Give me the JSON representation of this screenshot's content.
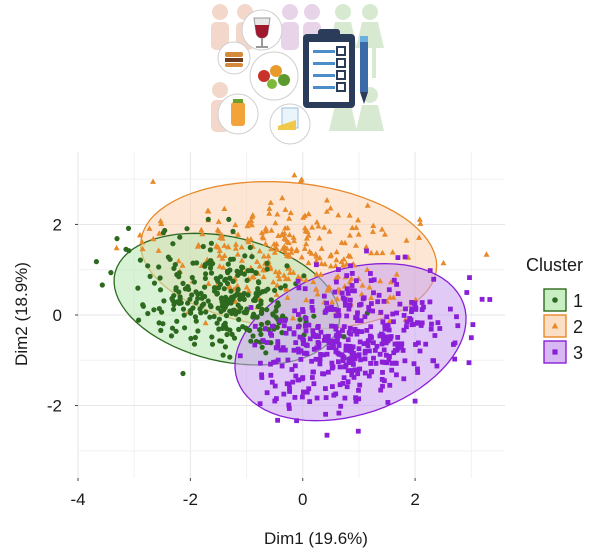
{
  "chart_data": {
    "type": "scatter",
    "xlabel": "Dim1 (19.6%)",
    "ylabel": "Dim2 (18.9%)",
    "xlim": [
      -4.0,
      3.6
    ],
    "ylim": [
      -3.6,
      3.6
    ],
    "x_ticks": [
      -4,
      -2,
      0,
      2
    ],
    "y_ticks": [
      -2,
      0,
      2
    ],
    "grid": true,
    "legend_title": "Cluster",
    "legend_position": "right",
    "series": [
      {
        "name": "1",
        "marker": "circle",
        "color": "#2d6a1f",
        "ellipse": {
          "cx": -1.35,
          "cy": 0.35,
          "rx": 2.08,
          "ry": 1.35,
          "angle_deg": -20,
          "fill": "#b6e8b0",
          "stroke": "#2d6a1f"
        }
      },
      {
        "name": "2",
        "marker": "triangle",
        "color": "#e8892a",
        "ellipse": {
          "cx": -0.25,
          "cy": 1.32,
          "rx": 2.65,
          "ry": 1.6,
          "angle_deg": -8,
          "fill": "#fbd3b0",
          "stroke": "#e8892a"
        }
      },
      {
        "name": "3",
        "marker": "square",
        "color": "#8a1fd8",
        "ellipse": {
          "cx": 0.85,
          "cy": -0.6,
          "rx": 2.2,
          "ry": 1.55,
          "angle_deg": 30,
          "fill": "#c9a0ef",
          "stroke": "#8a1fd8"
        }
      }
    ],
    "point_counts": {
      "1": 300,
      "2": 300,
      "3": 420
    }
  }
}
